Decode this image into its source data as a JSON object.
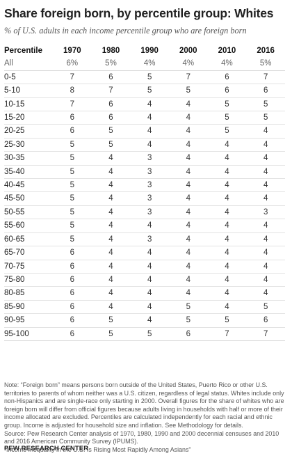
{
  "title": "Share foreign born, by percentile group: Whites",
  "subtitle": "% of U.S. adults in each income percentile group who are foreign born",
  "chart_data": {
    "type": "table",
    "row_header": "Percentile",
    "columns": [
      "1970",
      "1980",
      "1990",
      "2000",
      "2010",
      "2016"
    ],
    "all_row": {
      "label": "All",
      "values": [
        "6%",
        "5%",
        "4%",
        "4%",
        "4%",
        "5%"
      ]
    },
    "rows": [
      {
        "label": "0-5",
        "values": [
          7,
          6,
          5,
          7,
          6,
          7
        ]
      },
      {
        "label": "5-10",
        "values": [
          8,
          7,
          5,
          5,
          6,
          6
        ]
      },
      {
        "label": "10-15",
        "values": [
          7,
          6,
          4,
          4,
          5,
          5
        ]
      },
      {
        "label": "15-20",
        "values": [
          6,
          6,
          4,
          4,
          5,
          5
        ]
      },
      {
        "label": "20-25",
        "values": [
          6,
          5,
          4,
          4,
          5,
          4
        ]
      },
      {
        "label": "25-30",
        "values": [
          5,
          5,
          4,
          4,
          4,
          4
        ]
      },
      {
        "label": "30-35",
        "values": [
          5,
          4,
          3,
          4,
          4,
          4
        ]
      },
      {
        "label": "35-40",
        "values": [
          5,
          4,
          3,
          4,
          4,
          4
        ]
      },
      {
        "label": "40-45",
        "values": [
          5,
          4,
          3,
          4,
          4,
          4
        ]
      },
      {
        "label": "45-50",
        "values": [
          5,
          4,
          3,
          4,
          4,
          4
        ]
      },
      {
        "label": "50-55",
        "values": [
          5,
          4,
          3,
          4,
          4,
          3
        ]
      },
      {
        "label": "55-60",
        "values": [
          5,
          4,
          4,
          4,
          4,
          4
        ]
      },
      {
        "label": "60-65",
        "values": [
          5,
          4,
          3,
          4,
          4,
          4
        ]
      },
      {
        "label": "65-70",
        "values": [
          6,
          4,
          4,
          4,
          4,
          4
        ]
      },
      {
        "label": "70-75",
        "values": [
          6,
          4,
          4,
          4,
          4,
          4
        ]
      },
      {
        "label": "75-80",
        "values": [
          6,
          4,
          4,
          4,
          4,
          4
        ]
      },
      {
        "label": "80-85",
        "values": [
          6,
          4,
          4,
          4,
          4,
          4
        ]
      },
      {
        "label": "85-90",
        "values": [
          6,
          4,
          4,
          5,
          4,
          5
        ]
      },
      {
        "label": "90-95",
        "values": [
          6,
          5,
          4,
          5,
          5,
          6
        ]
      },
      {
        "label": "95-100",
        "values": [
          6,
          5,
          5,
          6,
          7,
          7
        ]
      }
    ]
  },
  "notes": {
    "note": "Note: “Foreign born” means persons born outside of the United States, Puerto Rico or other U.S. territories to parents of whom neither was a U.S. citizen, regardless of legal status. Whites include only non-Hispanics and are single-race only starting in 2000. Overall figures for the share of whites who are foreign born will differ from official figures because adults living in households with half or more of their income allocated are excluded. Percentiles are calculated independently for each racial and ethnic group. Income is adjusted for household size and inflation. See Methodology for details.",
    "source": "Source: Pew Research Center analysis of 1970, 1980, 1990 and 2000 decennial censuses and 2010 and 2016 American Community Survey (IPUMS).",
    "report": "“Income Inequality in the U.S. Is Rising Most Rapidly Among Asians”"
  },
  "footer": "PEW RESEARCH CENTER"
}
